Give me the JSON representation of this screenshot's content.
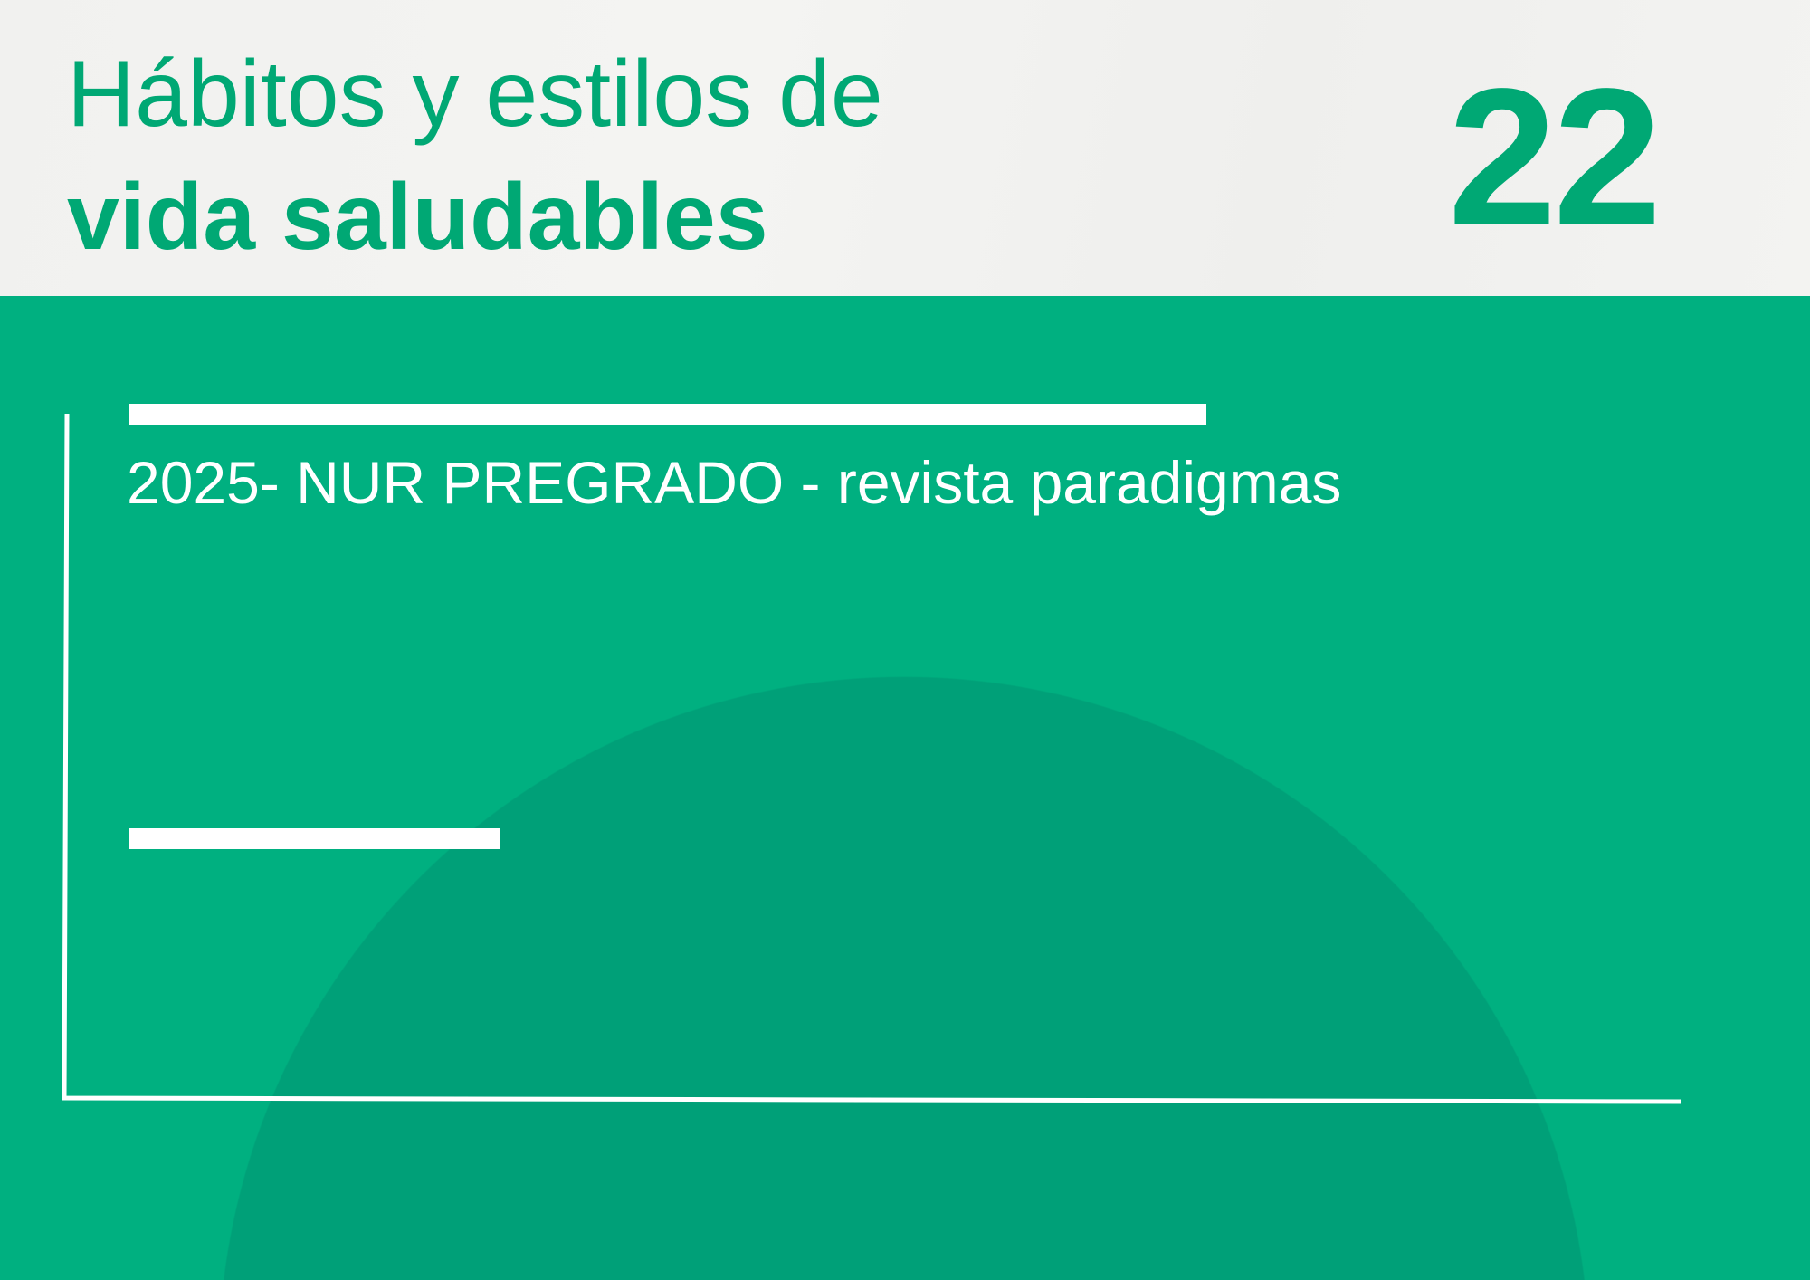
{
  "header": {
    "title_line1": "Hábitos y estilos de",
    "title_line2": "vida saludables",
    "number": "22"
  },
  "main": {
    "subtitle": "2025- NUR PREGRADO - revista paradigmas"
  },
  "colors": {
    "brand_green": "#00b080",
    "circle_green": "#00a078",
    "title_green": "#00a874",
    "paper": "#f2f2f0"
  }
}
